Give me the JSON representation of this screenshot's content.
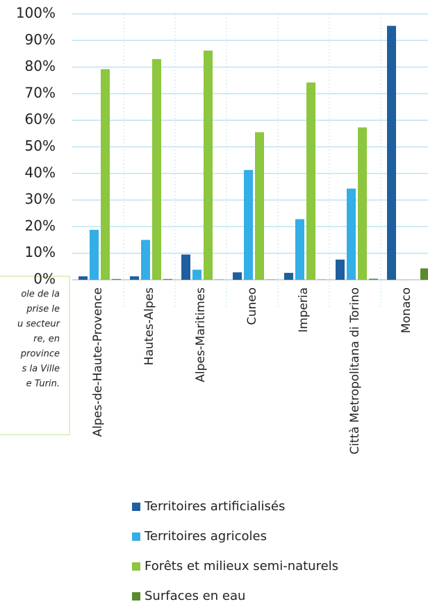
{
  "chart_data": {
    "type": "bar",
    "categories": [
      "Alpes-de-Haute-Provence",
      "Hautes-Alpes",
      "Alpes-Maritimes",
      "Cuneo",
      "Imperia",
      "Città Metropolitana di Torino",
      "Monaco"
    ],
    "series": [
      {
        "name": "Territoires artificialisés",
        "color": "#1f5f9e",
        "values": [
          1.3,
          1.3,
          9.5,
          2.8,
          2.6,
          7.6,
          95.5
        ]
      },
      {
        "name": "Territoires agricoles",
        "color": "#33aee6",
        "values": [
          18.8,
          15,
          3.8,
          41.3,
          22.8,
          34.3,
          0
        ]
      },
      {
        "name": "Forêts et milieux semi-naturels",
        "color": "#8dc63f",
        "values": [
          79.2,
          83,
          86.2,
          55.5,
          74.2,
          57.3,
          0
        ]
      },
      {
        "name": "Surfaces en eau",
        "color": "#5a8a2e",
        "values": [
          0.3,
          0.3,
          0.1,
          0.1,
          0.1,
          0.4,
          4.3
        ]
      }
    ],
    "ylim": [
      0,
      100
    ],
    "yticks": [
      {
        "value": 0,
        "label": "0%"
      },
      {
        "value": 10,
        "label": "10%"
      },
      {
        "value": 20,
        "label": "20%"
      },
      {
        "value": 30,
        "label": "30%"
      },
      {
        "value": 40,
        "label": "40%"
      },
      {
        "value": 50,
        "label": "50%"
      },
      {
        "value": 60,
        "label": "60%"
      },
      {
        "value": 70,
        "label": "70%"
      },
      {
        "value": 80,
        "label": "80%"
      },
      {
        "value": 90,
        "label": "90%"
      },
      {
        "value": 100,
        "label": "100%"
      }
    ],
    "grid": true,
    "annotation": [
      "ole de la",
      "prise le",
      "u secteur",
      "re, en",
      "province",
      "s la Ville",
      "e Turin."
    ]
  }
}
